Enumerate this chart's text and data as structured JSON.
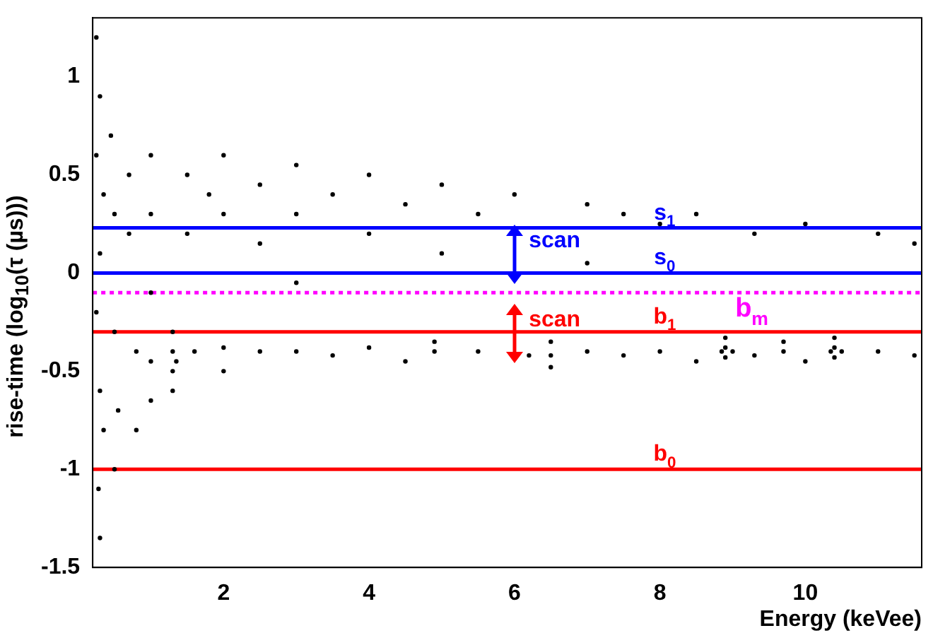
{
  "chart_data": {
    "type": "scatter",
    "xlabel": "Energy (keVee)",
    "ylabel": "rise-time (log$_{10}$(τ (µs)))",
    "xlim": [
      0.2,
      11.6
    ],
    "xticks": [
      2,
      4,
      6,
      8,
      10
    ],
    "ylim": [
      -1.5,
      1.3
    ],
    "yticks": [
      -1.5,
      -1,
      -0.5,
      0,
      0.5,
      1
    ],
    "grid": false,
    "legend": false,
    "marker": "circle",
    "series": [
      {
        "color": "#000000",
        "x": [
          0.25,
          0.3,
          0.25,
          0.35,
          0.3,
          0.25,
          0.3,
          0.35,
          0.28,
          0.3,
          0.45,
          0.5,
          0.5,
          0.55,
          0.5,
          0.7,
          0.7,
          0.8,
          0.8,
          1.0,
          1.0,
          1.0,
          1.0,
          1.0,
          1.3,
          1.3,
          1.3,
          1.3,
          1.35,
          1.5,
          1.5,
          1.6,
          1.8,
          2,
          2,
          2,
          2,
          2.5,
          2.5,
          2.5,
          3,
          3,
          3,
          3,
          3.5,
          3.5,
          4,
          4,
          4,
          4.5,
          4.5,
          4.9,
          4.9,
          5,
          5,
          5.5,
          5.5,
          6,
          6.2,
          6.5,
          6.5,
          6.5,
          7,
          7,
          7,
          7.5,
          7.5,
          8,
          8,
          8.5,
          8.5,
          8.9,
          8.9,
          8.9,
          8.85,
          9.0,
          9.3,
          9.3,
          9.7,
          9.7,
          10,
          10,
          10.4,
          10.4,
          10.4,
          10.35,
          10.5,
          11,
          11,
          11.5,
          11.5
        ],
        "values": [
          1.2,
          0.9,
          0.6,
          0.4,
          0.1,
          -0.2,
          -0.6,
          -0.8,
          -1.1,
          -1.35,
          0.7,
          0.3,
          -0.3,
          -0.7,
          -1.0,
          0.5,
          0.2,
          -0.4,
          -0.8,
          0.6,
          0.3,
          -0.1,
          -0.45,
          -0.65,
          -0.3,
          -0.4,
          -0.5,
          -0.6,
          -0.45,
          0.5,
          0.2,
          -0.4,
          0.4,
          0.6,
          0.3,
          -0.38,
          -0.5,
          0.45,
          0.15,
          -0.4,
          0.55,
          0.3,
          -0.05,
          -0.4,
          0.4,
          -0.42,
          0.5,
          0.2,
          -0.38,
          0.35,
          -0.45,
          -0.35,
          -0.4,
          0.45,
          0.1,
          0.3,
          -0.4,
          0.4,
          -0.42,
          -0.35,
          -0.42,
          -0.48,
          0.35,
          0.05,
          -0.4,
          0.3,
          -0.42,
          0.25,
          -0.4,
          0.3,
          -0.45,
          -0.33,
          -0.38,
          -0.43,
          -0.4,
          -0.4,
          0.2,
          -0.42,
          -0.35,
          -0.4,
          0.25,
          -0.45,
          -0.33,
          -0.38,
          -0.43,
          -0.4,
          -0.4,
          0.2,
          -0.4,
          0.15,
          -0.42
        ]
      }
    ],
    "ref_lines": [
      {
        "axis": "y",
        "value": 0.23,
        "label": "s$_{1}$",
        "color": "#0000ff",
        "line_style": "solid"
      },
      {
        "axis": "y",
        "value": 0,
        "label": "s$_{0}$",
        "color": "#0000ff",
        "line_style": "solid"
      },
      {
        "axis": "y",
        "value": -0.1,
        "label": "b$_{m}$",
        "color": "#ff00ff",
        "line_style": "dotted"
      },
      {
        "axis": "y",
        "value": -0.3,
        "label": "b$_{1}$",
        "color": "#ff0000",
        "line_style": "solid"
      },
      {
        "axis": "y",
        "value": -1,
        "label": "b$_{0}$",
        "color": "#ff0000",
        "line_style": "solid"
      }
    ],
    "annotations": [
      "scan",
      "scan"
    ]
  }
}
